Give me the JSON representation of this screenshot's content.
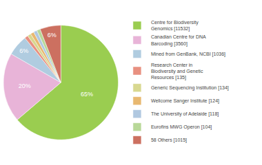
{
  "chart_data": {
    "type": "pie",
    "categories": [
      "Centre for Biodiversity\nGenomics [11532]",
      "Canadian Centre for DNA\nBarcoding [3560]",
      "Mined from GenBank, NCBI [1036]",
      "Research Center in\nBiodiversity and Genetic\nResources [135]",
      "Generic Sequencing Institution [134]",
      "Wellcome Sanger Institute [124]",
      "The University of Adelaide [118]",
      "Eurofins MWG Operon [104]",
      "58 Others [1015]"
    ],
    "values": [
      65,
      20,
      6,
      1,
      1,
      1,
      1,
      1,
      6
    ],
    "value_labels": [
      "65%",
      "20%",
      "6%",
      null,
      null,
      null,
      null,
      null,
      "6%"
    ],
    "colors": [
      "#9acd50",
      "#e8b4d8",
      "#b0cce0",
      "#e89080",
      "#d8d890",
      "#e8b870",
      "#b0c8e0",
      "#b8d898",
      "#cc7060"
    ],
    "data_labels": true,
    "legend": "right"
  }
}
